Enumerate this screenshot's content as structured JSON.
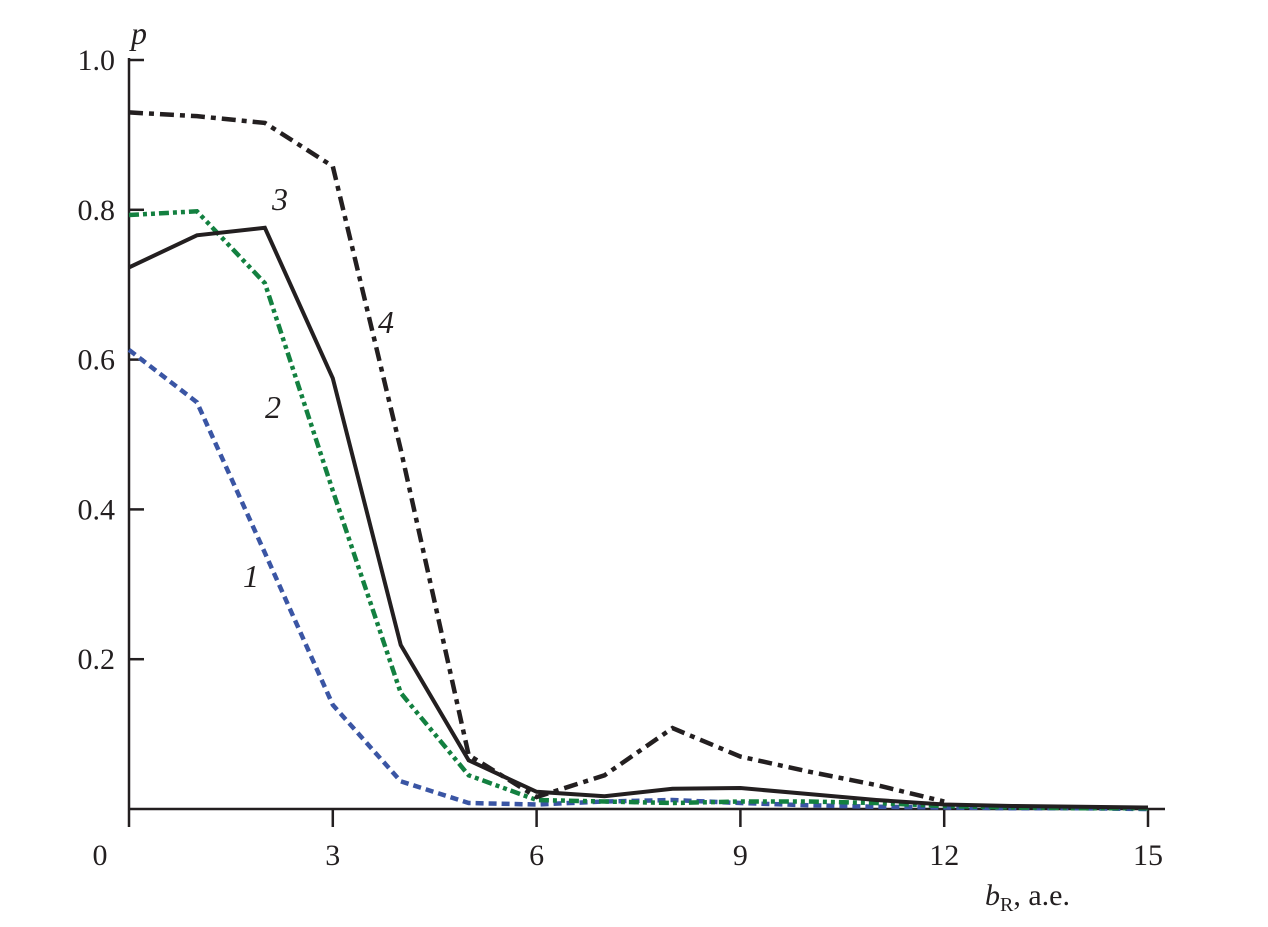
{
  "chart_data": {
    "type": "line",
    "title": "",
    "xlabel": "b",
    "xlabel_sub": "R",
    "xlabel_unit": ", a.e.",
    "ylabel": "p",
    "xlim": [
      0,
      15
    ],
    "ylim": [
      0,
      1.0
    ],
    "grid": false,
    "x_ticks": [
      "0",
      "3",
      "6",
      "9",
      "12",
      "15"
    ],
    "x_tick_values": [
      0,
      3,
      6,
      9,
      12,
      15
    ],
    "y_ticks": [
      "0.2",
      "0.4",
      "0.6",
      "0.8",
      "1.0"
    ],
    "y_tick_values": [
      0.2,
      0.4,
      0.6,
      0.8,
      1.0
    ],
    "series": [
      {
        "name": "1",
        "color": "#3a55a4",
        "style": "dashed",
        "x": [
          0,
          1,
          2,
          3,
          4,
          5,
          6,
          7,
          8,
          9,
          10,
          11,
          12,
          13,
          14,
          15
        ],
        "y": [
          0.613,
          0.543,
          0.342,
          0.139,
          0.037,
          0.008,
          0.006,
          0.01,
          0.012,
          0.008,
          0.005,
          0.003,
          0.002,
          0.001,
          0.001,
          0.0
        ],
        "label_at": [
          7.0,
          0.31
        ]
      },
      {
        "name": "2",
        "color": "#138040",
        "style": "dash-dot-dot",
        "x": [
          0,
          1,
          2,
          3,
          4,
          5,
          6,
          7,
          8,
          9,
          10,
          11,
          12,
          13,
          14,
          15
        ],
        "y": [
          0.793,
          0.798,
          0.702,
          0.425,
          0.155,
          0.045,
          0.012,
          0.01,
          0.008,
          0.01,
          0.01,
          0.008,
          0.004,
          0.002,
          0.001,
          0.001
        ],
        "label_at": [
          2.2,
          0.52
        ]
      },
      {
        "name": "3",
        "color": "#231f20",
        "style": "solid",
        "x": [
          0,
          1,
          2,
          3,
          4,
          5,
          6,
          7,
          8,
          9,
          10,
          11,
          12,
          13,
          14,
          15
        ],
        "y": [
          0.723,
          0.766,
          0.776,
          0.575,
          0.219,
          0.065,
          0.023,
          0.017,
          0.027,
          0.028,
          0.02,
          0.012,
          0.006,
          0.004,
          0.003,
          0.002
        ],
        "label_at": [
          2.1,
          0.79
        ]
      },
      {
        "name": "4",
        "color": "#231f20",
        "style": "dash-dot",
        "x": [
          0,
          1,
          2,
          3,
          4,
          5,
          6,
          7,
          8,
          9,
          10,
          11,
          12
        ],
        "y": [
          0.93,
          0.925,
          0.916,
          0.858,
          0.48,
          0.072,
          0.016,
          0.045,
          0.108,
          0.07,
          0.05,
          0.032,
          0.01
        ],
        "label_at": [
          3.8,
          0.64
        ]
      }
    ]
  }
}
